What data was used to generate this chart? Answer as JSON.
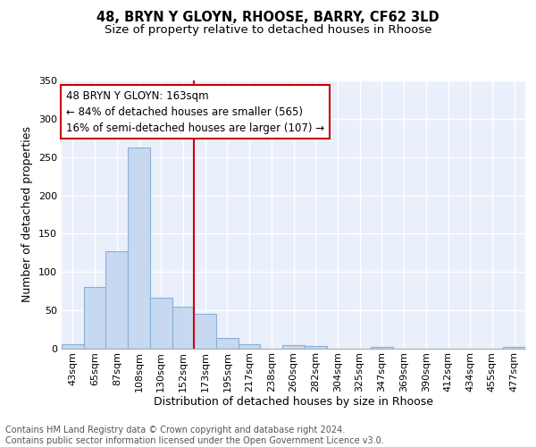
{
  "title1": "48, BRYN Y GLOYN, RHOOSE, BARRY, CF62 3LD",
  "title2": "Size of property relative to detached houses in Rhoose",
  "xlabel": "Distribution of detached houses by size in Rhoose",
  "ylabel": "Number of detached properties",
  "categories": [
    "43sqm",
    "65sqm",
    "87sqm",
    "108sqm",
    "130sqm",
    "152sqm",
    "173sqm",
    "195sqm",
    "217sqm",
    "238sqm",
    "260sqm",
    "282sqm",
    "304sqm",
    "325sqm",
    "347sqm",
    "369sqm",
    "390sqm",
    "412sqm",
    "434sqm",
    "455sqm",
    "477sqm"
  ],
  "values": [
    6,
    81,
    127,
    262,
    66,
    55,
    45,
    14,
    6,
    0,
    5,
    4,
    0,
    0,
    2,
    0,
    0,
    0,
    0,
    0,
    2
  ],
  "bar_color": "#c6d9f0",
  "bar_edge_color": "#8ab0d8",
  "vline_x": 6.0,
  "vline_color": "#cc0000",
  "ann_line1": "48 BRYN Y GLOYN: 163sqm",
  "ann_line2": "← 84% of detached houses are smaller (565)",
  "ann_line3": "16% of semi-detached houses are larger (107) →",
  "annotation_box_color": "#cc0000",
  "ylim": [
    0,
    350
  ],
  "yticks": [
    0,
    50,
    100,
    150,
    200,
    250,
    300,
    350
  ],
  "bg_color": "#eaf0fb",
  "grid_color": "white",
  "footer": "Contains HM Land Registry data © Crown copyright and database right 2024.\nContains public sector information licensed under the Open Government Licence v3.0.",
  "title1_fontsize": 10.5,
  "title2_fontsize": 9.5,
  "xlabel_fontsize": 9,
  "ylabel_fontsize": 9,
  "tick_fontsize": 8,
  "footer_fontsize": 7,
  "ann_fontsize": 8.5
}
